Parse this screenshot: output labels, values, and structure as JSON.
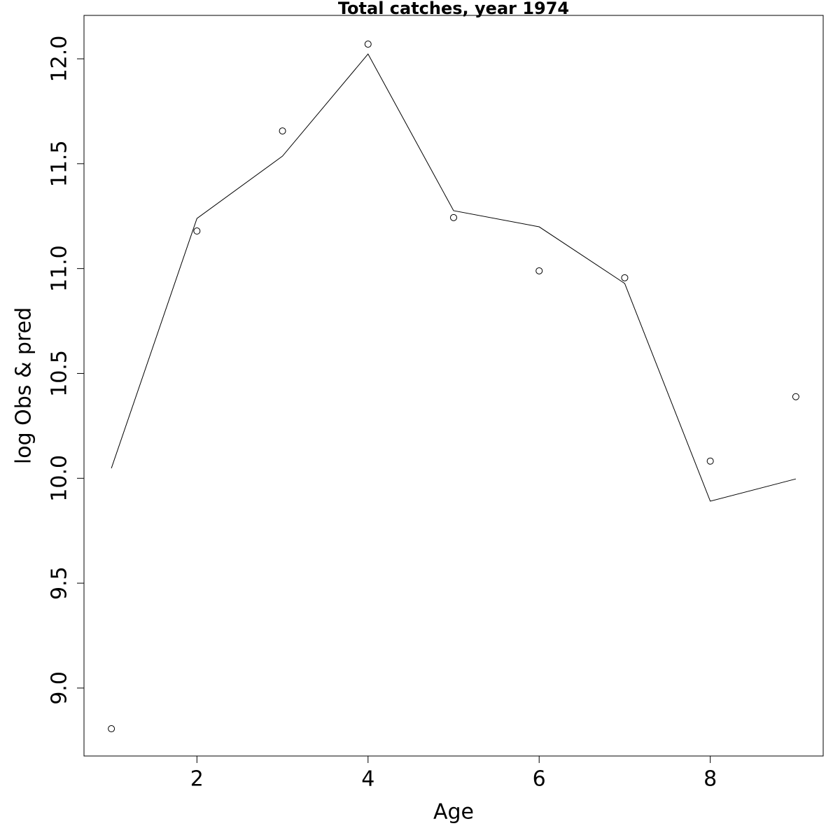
{
  "chart_data": {
    "type": "line",
    "title": "Total catches, year 1974",
    "x_label": "Age",
    "y_label": "log Obs & pred",
    "x": [
      1,
      2,
      3,
      4,
      5,
      6,
      7,
      8,
      9
    ],
    "series": [
      {
        "mark": "point",
        "color": "#000000",
        "values": [
          8.806,
          11.179,
          11.656,
          12.07,
          11.243,
          10.989,
          10.956,
          10.082,
          10.389
        ]
      },
      {
        "mark": "line",
        "color": "#000000",
        "values": [
          10.048,
          11.239,
          11.536,
          12.023,
          11.276,
          11.199,
          10.929,
          9.891,
          9.997
        ]
      }
    ],
    "xlim": [
      0.68,
      9.32
    ],
    "ylim": [
      8.676,
      12.207
    ],
    "xticks": [
      2,
      4,
      6,
      8
    ],
    "yticks": [
      {
        "value": 9,
        "label": "9.0"
      },
      {
        "value": 9.5,
        "label": "9.5"
      },
      {
        "value": 10,
        "label": "10.0"
      },
      {
        "value": 10.5,
        "label": "10.5"
      },
      {
        "value": 11,
        "label": "11.0"
      },
      {
        "value": 11.5,
        "label": "11.5"
      },
      {
        "value": 12,
        "label": "12.0"
      }
    ],
    "grid": false
  }
}
